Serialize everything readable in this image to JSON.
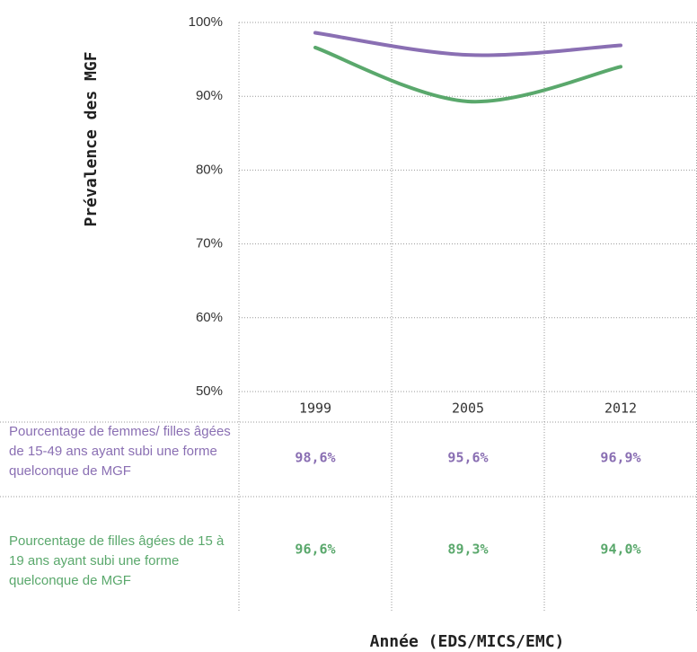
{
  "chart_data": {
    "type": "line",
    "x_label": "Année (EDS/MICS/EMC)",
    "y_label": "Prévalence des MGF",
    "categories": [
      "1999",
      "2005",
      "2012"
    ],
    "series": [
      {
        "name": "Pourcentage de femmes/ filles âgées de 15-49 ans ayant subi une forme quelconque de MGF",
        "color": "#8a6fb3",
        "values": [
          98.6,
          95.6,
          96.9
        ],
        "value_labels": [
          "98,6%",
          "95,6%",
          "96,9%"
        ]
      },
      {
        "name": "Pourcentage de filles âgées de 15 à 19 ans ayant subi une forme quelconque de MGF",
        "color": "#5aa86c",
        "values": [
          96.6,
          89.3,
          94.0
        ],
        "value_labels": [
          "96,6%",
          "89,3%",
          "94,0%"
        ]
      }
    ],
    "ylim": [
      50,
      100
    ],
    "yticks": [
      {
        "value": 50,
        "label": "50%"
      },
      {
        "value": 60,
        "label": "60%"
      },
      {
        "value": 70,
        "label": "70%"
      },
      {
        "value": 80,
        "label": "80%"
      },
      {
        "value": 90,
        "label": "90%"
      },
      {
        "value": 100,
        "label": "100%"
      }
    ],
    "grid": true
  }
}
